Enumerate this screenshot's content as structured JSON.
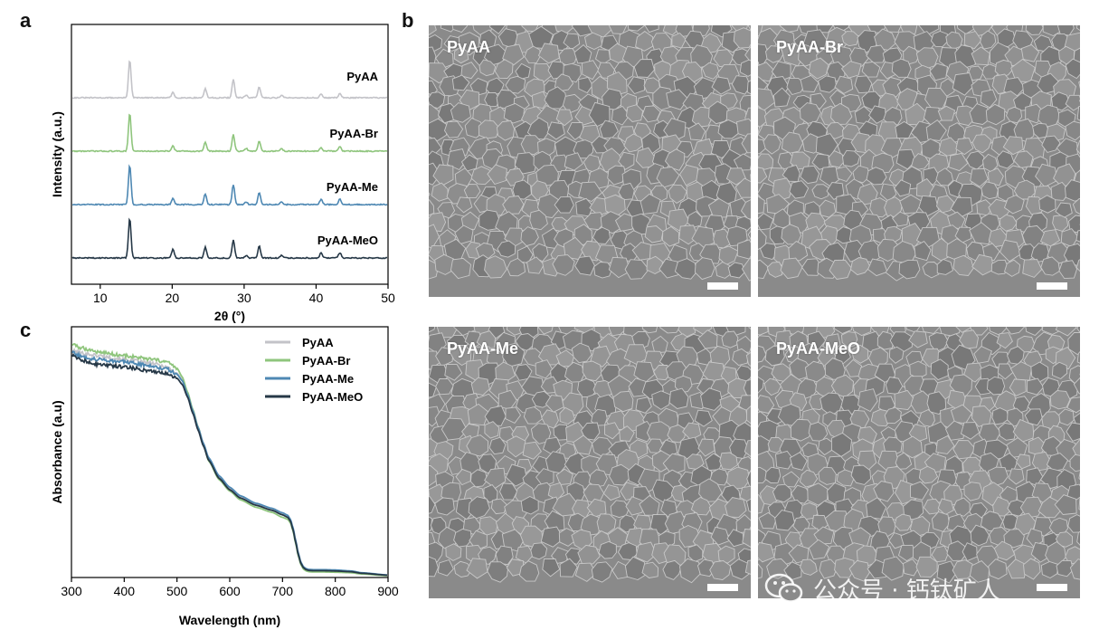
{
  "panels": {
    "a": "a",
    "b": "b",
    "c": "c"
  },
  "chart_data": [
    {
      "type": "line",
      "panel": "a",
      "title": "",
      "xlabel": "2θ (°)",
      "ylabel": "Intensity (a.u.)",
      "xlim": [
        6,
        50
      ],
      "xticks": [
        10,
        20,
        30,
        40,
        50
      ],
      "stacked_offset": true,
      "peak_positions": [
        14.1,
        20.1,
        24.6,
        28.5,
        30.3,
        32.1,
        35.2,
        40.7,
        43.3
      ],
      "series": [
        {
          "name": "PyAA",
          "color": "#c3c3c8",
          "baseline": 3,
          "peak_heights": [
            42,
            6,
            10,
            20,
            3,
            12,
            3,
            4,
            5
          ]
        },
        {
          "name": "PyAA-Br",
          "color": "#8fc57d",
          "baseline": 2,
          "peak_heights": [
            42,
            6,
            10,
            18,
            3,
            11,
            3,
            4,
            5
          ]
        },
        {
          "name": "PyAA-Me",
          "color": "#4e88b3",
          "baseline": 1,
          "peak_heights": [
            44,
            7,
            12,
            22,
            3,
            13,
            3,
            6,
            6
          ]
        },
        {
          "name": "PyAA-MeO",
          "color": "#263847",
          "baseline": 0,
          "peak_heights": [
            44,
            10,
            12,
            20,
            3,
            13,
            3,
            6,
            6
          ]
        }
      ]
    },
    {
      "type": "line",
      "panel": "c",
      "title": "",
      "xlabel": "Wavelength (nm)",
      "ylabel": "Absorbance (a.u)",
      "xlim": [
        300,
        900
      ],
      "ylim": [
        0,
        1
      ],
      "xticks": [
        300,
        400,
        500,
        600,
        700,
        800,
        900
      ],
      "legend_position": "top-right",
      "x": [
        300,
        320,
        350,
        400,
        450,
        480,
        500,
        510,
        520,
        530,
        540,
        550,
        560,
        580,
        600,
        620,
        650,
        680,
        700,
        710,
        715,
        720,
        725,
        730,
        735,
        740,
        745,
        750,
        760,
        780,
        800,
        830,
        850,
        900
      ],
      "series": [
        {
          "name": "PyAA",
          "color": "#c3c3c8",
          "values": [
            0.905,
            0.895,
            0.885,
            0.87,
            0.855,
            0.84,
            0.815,
            0.79,
            0.735,
            0.67,
            0.6,
            0.535,
            0.475,
            0.4,
            0.355,
            0.32,
            0.29,
            0.27,
            0.25,
            0.24,
            0.225,
            0.19,
            0.14,
            0.09,
            0.055,
            0.038,
            0.03,
            0.027,
            0.026,
            0.026,
            0.025,
            0.022,
            0.016,
            0.008
          ]
        },
        {
          "name": "PyAA-Br",
          "color": "#8fc57d",
          "values": [
            0.93,
            0.915,
            0.9,
            0.885,
            0.87,
            0.86,
            0.835,
            0.8,
            0.74,
            0.67,
            0.6,
            0.53,
            0.465,
            0.39,
            0.345,
            0.31,
            0.28,
            0.26,
            0.24,
            0.232,
            0.218,
            0.185,
            0.135,
            0.085,
            0.05,
            0.033,
            0.026,
            0.023,
            0.022,
            0.022,
            0.021,
            0.019,
            0.014,
            0.007
          ]
        },
        {
          "name": "PyAA-Me",
          "color": "#4e88b3",
          "values": [
            0.9,
            0.88,
            0.87,
            0.86,
            0.845,
            0.832,
            0.81,
            0.785,
            0.73,
            0.665,
            0.598,
            0.535,
            0.478,
            0.405,
            0.36,
            0.326,
            0.296,
            0.276,
            0.258,
            0.248,
            0.232,
            0.198,
            0.148,
            0.097,
            0.06,
            0.042,
            0.035,
            0.032,
            0.031,
            0.031,
            0.03,
            0.026,
            0.019,
            0.01
          ]
        },
        {
          "name": "PyAA-MeO",
          "color": "#263847",
          "values": [
            0.885,
            0.865,
            0.85,
            0.84,
            0.825,
            0.815,
            0.795,
            0.77,
            0.72,
            0.655,
            0.588,
            0.525,
            0.468,
            0.395,
            0.35,
            0.317,
            0.288,
            0.268,
            0.25,
            0.24,
            0.225,
            0.19,
            0.14,
            0.09,
            0.055,
            0.038,
            0.031,
            0.028,
            0.027,
            0.027,
            0.026,
            0.023,
            0.017,
            0.009
          ]
        }
      ]
    }
  ],
  "sem_images": [
    {
      "label": "PyAA"
    },
    {
      "label": "PyAA-Br"
    },
    {
      "label": "PyAA-Me"
    },
    {
      "label": "PyAA-MeO"
    }
  ],
  "watermark": {
    "text": "公众号 · 钙钛矿人",
    "icon": "wechat-icon"
  }
}
